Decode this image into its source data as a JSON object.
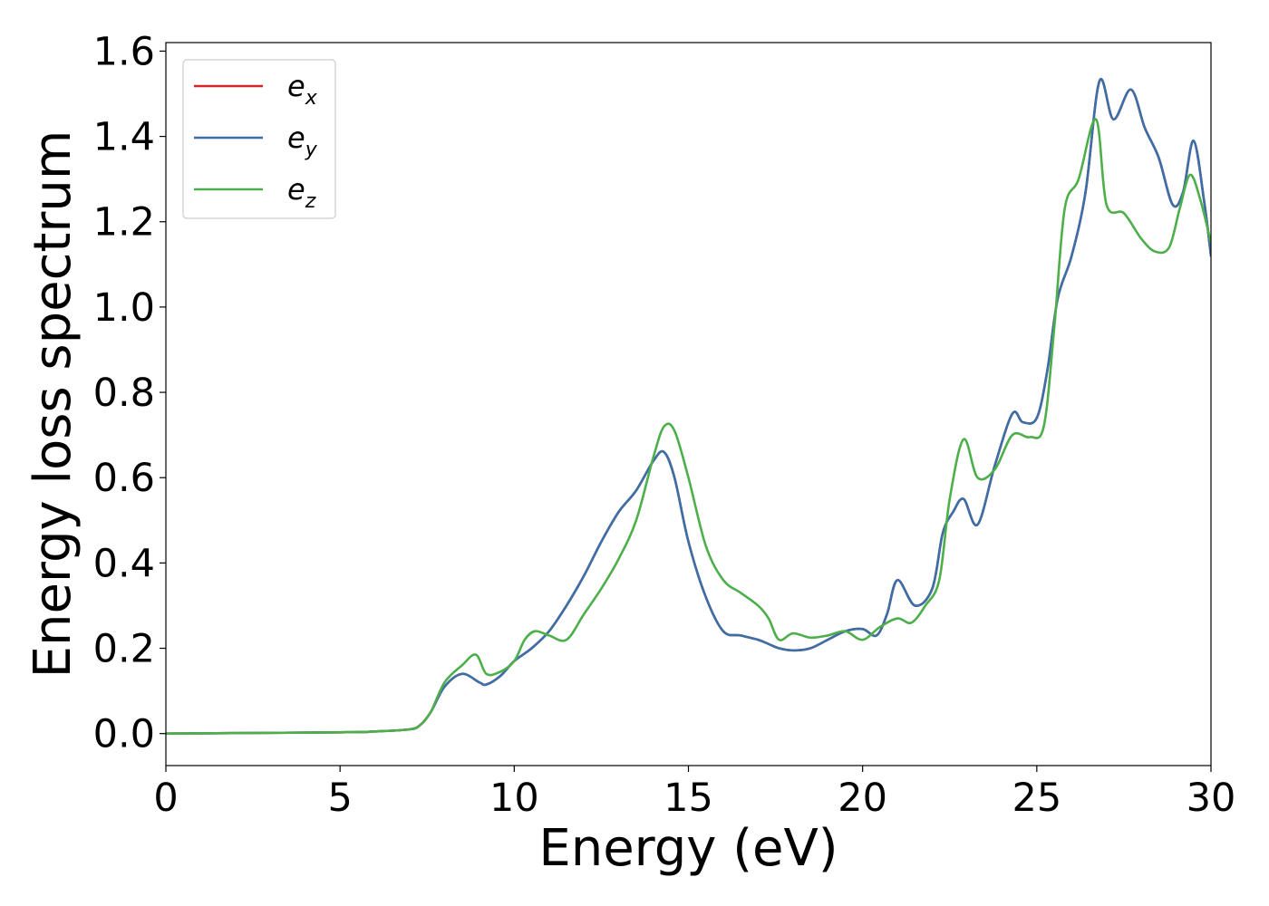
{
  "chart_data": {
    "type": "line",
    "xlabel": "Energy (eV)",
    "ylabel": "Energy loss spectrum",
    "xlim": [
      0,
      30
    ],
    "ylim": [
      -0.075,
      1.62
    ],
    "xticks": [
      0,
      5,
      10,
      15,
      20,
      25,
      30
    ],
    "xtick_labels": [
      "0",
      "5",
      "10",
      "15",
      "20",
      "25",
      "30"
    ],
    "yticks": [
      0.0,
      0.2,
      0.4,
      0.6,
      0.8,
      1.0,
      1.2,
      1.4,
      1.6
    ],
    "ytick_labels": [
      "0.0",
      "0.2",
      "0.4",
      "0.6",
      "0.8",
      "1.0",
      "1.2",
      "1.4",
      "1.6"
    ],
    "grid": false,
    "legend_position": "top-left",
    "series": [
      {
        "name": "e_x",
        "legend_base": "e",
        "legend_sub": "x",
        "color": "#d62728",
        "x": [
          0,
          5,
          6,
          7,
          7.3,
          7.6,
          8,
          8.5,
          9,
          9.2,
          9.6,
          10,
          10.5,
          11,
          11.5,
          12,
          12.5,
          13,
          13.5,
          14,
          14.3,
          14.6,
          15,
          15.5,
          16,
          16.5,
          17,
          17.3,
          17.6,
          18,
          18.5,
          19,
          19.5,
          20,
          20.4,
          20.7,
          21,
          21.5,
          22,
          22.3,
          22.6,
          22.9,
          23.3,
          23.8,
          24.3,
          24.6,
          25,
          25.3,
          25.6,
          26,
          26.4,
          26.8,
          27.2,
          27.7,
          28.1,
          28.5,
          28.9,
          29.2,
          29.5,
          29.8,
          30
        ],
        "y": [
          0,
          0.003,
          0.005,
          0.01,
          0.02,
          0.05,
          0.11,
          0.14,
          0.12,
          0.115,
          0.135,
          0.17,
          0.2,
          0.24,
          0.3,
          0.37,
          0.45,
          0.52,
          0.57,
          0.64,
          0.66,
          0.6,
          0.45,
          0.32,
          0.24,
          0.23,
          0.22,
          0.21,
          0.2,
          0.195,
          0.2,
          0.22,
          0.24,
          0.245,
          0.23,
          0.28,
          0.36,
          0.3,
          0.34,
          0.47,
          0.52,
          0.55,
          0.49,
          0.63,
          0.75,
          0.73,
          0.74,
          0.85,
          1.02,
          1.12,
          1.27,
          1.53,
          1.44,
          1.51,
          1.42,
          1.35,
          1.24,
          1.27,
          1.39,
          1.25,
          1.12
        ]
      },
      {
        "name": "e_y",
        "legend_base": "e",
        "legend_sub": "y",
        "color": "#3a6fa8",
        "x": [
          0,
          5,
          6,
          7,
          7.3,
          7.6,
          8,
          8.5,
          9,
          9.2,
          9.6,
          10,
          10.5,
          11,
          11.5,
          12,
          12.5,
          13,
          13.5,
          14,
          14.3,
          14.6,
          15,
          15.5,
          16,
          16.5,
          17,
          17.3,
          17.6,
          18,
          18.5,
          19,
          19.5,
          20,
          20.4,
          20.7,
          21,
          21.5,
          22,
          22.3,
          22.6,
          22.9,
          23.3,
          23.8,
          24.3,
          24.6,
          25,
          25.3,
          25.6,
          26,
          26.4,
          26.8,
          27.2,
          27.7,
          28.1,
          28.5,
          28.9,
          29.2,
          29.5,
          29.8,
          30
        ],
        "y": [
          0,
          0.003,
          0.005,
          0.01,
          0.02,
          0.05,
          0.11,
          0.14,
          0.12,
          0.115,
          0.135,
          0.17,
          0.2,
          0.24,
          0.3,
          0.37,
          0.45,
          0.52,
          0.57,
          0.64,
          0.66,
          0.6,
          0.45,
          0.32,
          0.24,
          0.23,
          0.22,
          0.21,
          0.2,
          0.195,
          0.2,
          0.22,
          0.24,
          0.245,
          0.23,
          0.28,
          0.36,
          0.3,
          0.34,
          0.47,
          0.52,
          0.55,
          0.49,
          0.63,
          0.75,
          0.73,
          0.74,
          0.85,
          1.02,
          1.12,
          1.27,
          1.53,
          1.44,
          1.51,
          1.42,
          1.35,
          1.24,
          1.27,
          1.39,
          1.25,
          1.12
        ]
      },
      {
        "name": "e_z",
        "legend_base": "e",
        "legend_sub": "z",
        "color": "#4daf4a",
        "x": [
          0,
          5,
          6,
          7,
          7.3,
          7.6,
          8,
          8.5,
          8.9,
          9.2,
          9.6,
          10,
          10.3,
          10.6,
          11,
          11.5,
          12,
          12.5,
          13,
          13.5,
          14,
          14.3,
          14.6,
          15,
          15.5,
          16,
          16.5,
          17,
          17.3,
          17.6,
          18,
          18.5,
          19,
          19.5,
          20,
          20.5,
          21,
          21.4,
          21.8,
          22.2,
          22.5,
          22.9,
          23.3,
          23.8,
          24.3,
          24.8,
          25.2,
          25.5,
          25.8,
          26.2,
          26.7,
          27,
          27.5,
          28,
          28.4,
          28.8,
          29.1,
          29.4,
          29.7,
          30
        ],
        "y": [
          0,
          0.003,
          0.005,
          0.01,
          0.02,
          0.05,
          0.12,
          0.16,
          0.185,
          0.14,
          0.145,
          0.17,
          0.22,
          0.24,
          0.23,
          0.22,
          0.28,
          0.34,
          0.41,
          0.5,
          0.65,
          0.72,
          0.71,
          0.6,
          0.44,
          0.36,
          0.33,
          0.3,
          0.27,
          0.22,
          0.235,
          0.225,
          0.23,
          0.24,
          0.22,
          0.25,
          0.27,
          0.26,
          0.3,
          0.36,
          0.55,
          0.69,
          0.6,
          0.62,
          0.7,
          0.695,
          0.72,
          0.95,
          1.23,
          1.3,
          1.44,
          1.24,
          1.22,
          1.16,
          1.13,
          1.14,
          1.23,
          1.31,
          1.25,
          1.15
        ]
      }
    ]
  }
}
